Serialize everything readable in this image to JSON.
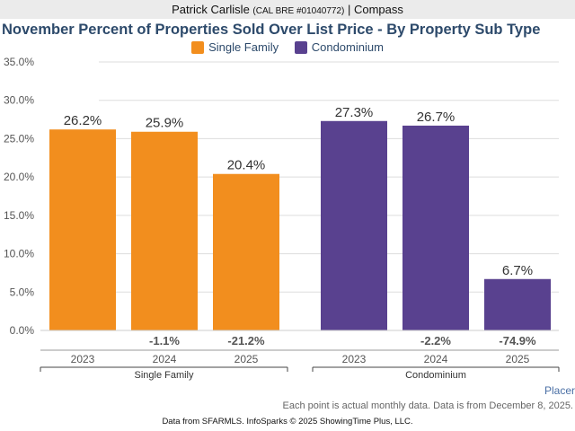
{
  "header": {
    "agent": "Patrick Carlisle",
    "license": "(CAL BRE #01040772)",
    "company": "| Compass"
  },
  "colors": {
    "single_family": "#f28e1e",
    "condominium": "#59418f",
    "title": "#2d4a6b"
  },
  "chart_data": {
    "type": "bar",
    "title": "November Percent of Properties Sold Over List Price - By Property Sub Type",
    "ylim": [
      0,
      35
    ],
    "yticks": [
      "0.0%",
      "5.0%",
      "10.0%",
      "15.0%",
      "20.0%",
      "25.0%",
      "30.0%",
      "35.0%"
    ],
    "ytick_values": [
      0,
      5,
      10,
      15,
      20,
      25,
      30,
      35
    ],
    "grid": true,
    "legend_placement": "top",
    "categories": [
      "2023",
      "2024",
      "2025"
    ],
    "series": [
      {
        "name": "Single Family",
        "values": [
          26.2,
          25.9,
          20.4
        ],
        "labels": [
          "26.2%",
          "25.9%",
          "20.4%"
        ],
        "changes": [
          "",
          "-1.1%",
          "-21.2%"
        ]
      },
      {
        "name": "Condominium",
        "values": [
          27.3,
          26.7,
          6.7
        ],
        "labels": [
          "27.3%",
          "26.7%",
          "6.7%"
        ],
        "changes": [
          "",
          "-2.2%",
          "-74.9%"
        ]
      }
    ]
  },
  "footer": {
    "region": "Placer",
    "note": "Each point is actual monthly data. Data is from December 8, 2025.",
    "source": "Data from SFARMLS. InfoSparks © 2025 ShowingTime Plus, LLC."
  }
}
